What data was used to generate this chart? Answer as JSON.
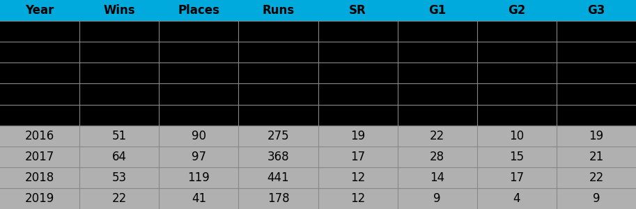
{
  "columns": [
    "Year",
    "Wins",
    "Places",
    "Runs",
    "SR",
    "G1",
    "G2",
    "G3"
  ],
  "black_rows": 5,
  "data_rows": [
    [
      "2016",
      "51",
      "90",
      "275",
      "19",
      "22",
      "10",
      "19"
    ],
    [
      "2017",
      "64",
      "97",
      "368",
      "17",
      "28",
      "15",
      "21"
    ],
    [
      "2018",
      "53",
      "119",
      "441",
      "12",
      "14",
      "17",
      "22"
    ],
    [
      "2019",
      "22",
      "41",
      "178",
      "12",
      "9",
      "4",
      "9"
    ]
  ],
  "header_bg": "#00AADD",
  "header_text": "#000000",
  "black_row_bg": "#000000",
  "data_row_bg": "#B0B0B0",
  "data_text": "#000000",
  "divider_color": "#888888",
  "header_fontsize": 12,
  "data_fontsize": 12,
  "fig_width": 9.13,
  "fig_height": 3.01,
  "dpi": 100
}
